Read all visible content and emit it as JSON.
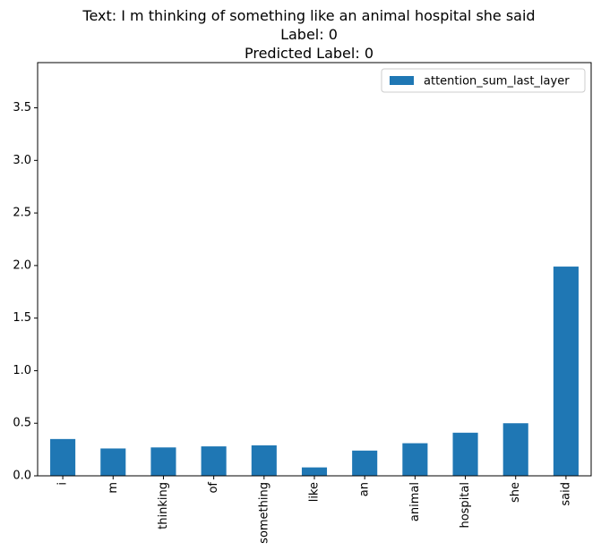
{
  "chart_data": {
    "type": "bar",
    "title_lines": [
      "Text: I m thinking of something like an animal hospital she said",
      "Label: 0",
      "Predicted Label: 0"
    ],
    "categories": [
      "i",
      "m",
      "thinking",
      "of",
      "something",
      "like",
      "an",
      "animal",
      "hospital",
      "she",
      "said"
    ],
    "series": [
      {
        "name": "attention_sum_last_layer",
        "color": "#1f77b4",
        "values": [
          0.35,
          0.26,
          0.27,
          0.28,
          0.29,
          0.08,
          0.24,
          0.31,
          0.41,
          0.5,
          1.99
        ]
      }
    ],
    "xlabel": "",
    "ylabel": "",
    "ylim": [
      0,
      3.93
    ],
    "yticks": [
      0.0,
      0.5,
      1.0,
      1.5,
      2.0,
      2.5,
      3.0,
      3.5
    ],
    "ytick_labels": [
      "0.0",
      "0.5",
      "1.0",
      "1.5",
      "2.0",
      "2.5",
      "3.0",
      "3.5"
    ],
    "grid": false,
    "legend_position": "top-right"
  }
}
